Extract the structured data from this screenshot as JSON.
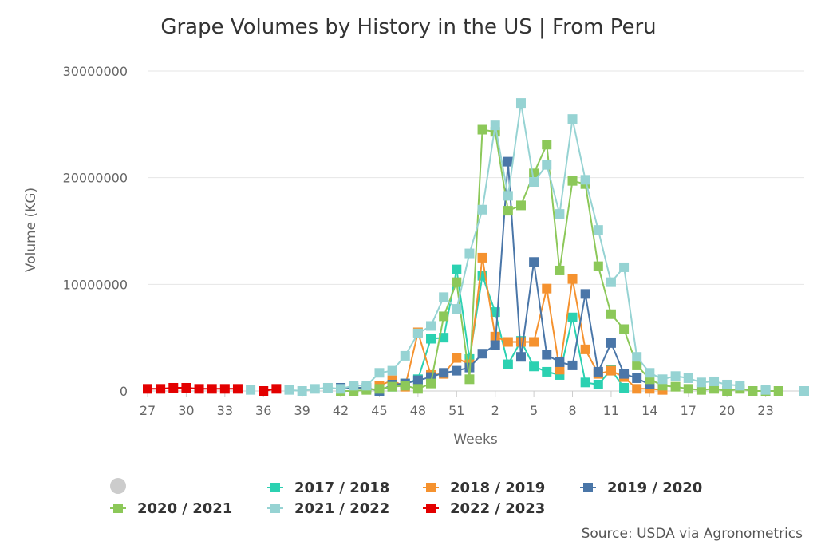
{
  "chart_data": {
    "type": "line",
    "title": "Grape Volumes by History in the US | From Peru",
    "xlabel": "Weeks",
    "ylabel": "Volume (KG)",
    "ylim": [
      0,
      30000000
    ],
    "yticks": [
      "0",
      "10000000",
      "20000000",
      "30000000"
    ],
    "x_tick_labels": [
      "27",
      "30",
      "33",
      "36",
      "39",
      "42",
      "45",
      "48",
      "51",
      "2",
      "5",
      "8",
      "11",
      "14",
      "17",
      "20",
      "23"
    ],
    "categories": [
      "27",
      "28",
      "29",
      "30",
      "31",
      "32",
      "33",
      "34",
      "35",
      "36",
      "37",
      "38",
      "39",
      "40",
      "41",
      "42",
      "43",
      "44",
      "45",
      "46",
      "47",
      "48",
      "49",
      "50",
      "51",
      "52",
      "1",
      "2",
      "3",
      "4",
      "5",
      "6",
      "7",
      "8",
      "9",
      "10",
      "11",
      "12",
      "13",
      "14",
      "15",
      "16",
      "17",
      "18",
      "19",
      "20",
      "21",
      "22",
      "23",
      "24",
      "25",
      "26"
    ],
    "grid": true,
    "legend_position": "bottom",
    "series": [
      {
        "name": "2017 / 2018",
        "color": "#2bd1b1",
        "values": [
          null,
          null,
          null,
          null,
          null,
          null,
          null,
          null,
          null,
          null,
          null,
          null,
          null,
          null,
          null,
          null,
          null,
          null,
          100000,
          400000,
          700000,
          1100000,
          4900000,
          5000000,
          11400000,
          3000000,
          10800000,
          7400000,
          2500000,
          4700000,
          2300000,
          1800000,
          1500000,
          6900000,
          800000,
          600000,
          2000000,
          300000,
          null,
          null,
          null,
          null,
          null,
          null,
          null,
          null,
          null,
          null,
          null,
          null,
          null,
          null
        ]
      },
      {
        "name": "2018 / 2019",
        "color": "#f5922f",
        "values": [
          null,
          null,
          null,
          null,
          null,
          null,
          null,
          null,
          null,
          null,
          null,
          null,
          null,
          null,
          null,
          null,
          null,
          null,
          500000,
          1000000,
          400000,
          5500000,
          1500000,
          1600000,
          3100000,
          2500000,
          12500000,
          5100000,
          4600000,
          4600000,
          4600000,
          9600000,
          2000000,
          10500000,
          3900000,
          1600000,
          1900000,
          1300000,
          200000,
          200000,
          100000,
          null,
          null,
          null,
          null,
          null,
          null,
          null,
          null,
          null,
          null,
          null
        ]
      },
      {
        "name": "2019 / 2020",
        "color": "#4a76a8",
        "values": [
          null,
          null,
          null,
          null,
          null,
          null,
          null,
          null,
          null,
          null,
          null,
          null,
          null,
          null,
          null,
          300000,
          300000,
          300000,
          0,
          600000,
          700000,
          1000000,
          1300000,
          1700000,
          1900000,
          2200000,
          3500000,
          4300000,
          21500000,
          3200000,
          12100000,
          3400000,
          2700000,
          2400000,
          9100000,
          1800000,
          4500000,
          1600000,
          1200000,
          600000,
          null,
          null,
          null,
          null,
          null,
          null,
          null,
          null,
          null,
          null,
          null,
          null
        ]
      },
      {
        "name": "2020 / 2021",
        "color": "#8cc859",
        "values": [
          null,
          null,
          null,
          null,
          null,
          null,
          null,
          null,
          null,
          null,
          null,
          null,
          null,
          null,
          null,
          0,
          0,
          100000,
          200000,
          400000,
          500000,
          200000,
          700000,
          7000000,
          10200000,
          1100000,
          24500000,
          24300000,
          16900000,
          17400000,
          20400000,
          23100000,
          11300000,
          19700000,
          19400000,
          11700000,
          7200000,
          5800000,
          2400000,
          1100000,
          500000,
          400000,
          200000,
          100000,
          200000,
          0,
          200000,
          0,
          0,
          0,
          null,
          null
        ]
      },
      {
        "name": "2021 / 2022",
        "color": "#96d3d3",
        "values": [
          null,
          null,
          null,
          null,
          null,
          null,
          null,
          null,
          100000,
          null,
          null,
          100000,
          0,
          200000,
          300000,
          200000,
          500000,
          500000,
          1700000,
          1900000,
          3300000,
          5400000,
          6100000,
          8800000,
          7700000,
          12900000,
          17000000,
          24900000,
          18300000,
          27000000,
          19600000,
          21200000,
          16600000,
          25500000,
          19800000,
          15100000,
          10200000,
          11600000,
          3200000,
          1700000,
          1100000,
          1400000,
          1200000,
          800000,
          900000,
          600000,
          500000,
          null,
          100000,
          null,
          null,
          0
        ]
      },
      {
        "name": "2022 / 2023",
        "color": "#e30000",
        "values": [
          200000,
          200000,
          300000,
          300000,
          200000,
          200000,
          200000,
          200000,
          null,
          0,
          200000,
          null,
          null,
          null,
          null,
          null,
          null,
          null,
          null,
          null,
          null,
          null,
          null,
          null,
          null,
          null,
          null,
          null,
          null,
          null,
          null,
          null,
          null,
          null,
          null,
          null,
          null,
          null,
          null,
          null,
          null,
          null,
          null,
          null,
          null,
          null,
          null,
          null,
          null,
          null,
          null,
          null
        ]
      }
    ],
    "hidden_legend_icon": "grey-circle-icon",
    "source": "Source: USDA via Agronometrics"
  }
}
